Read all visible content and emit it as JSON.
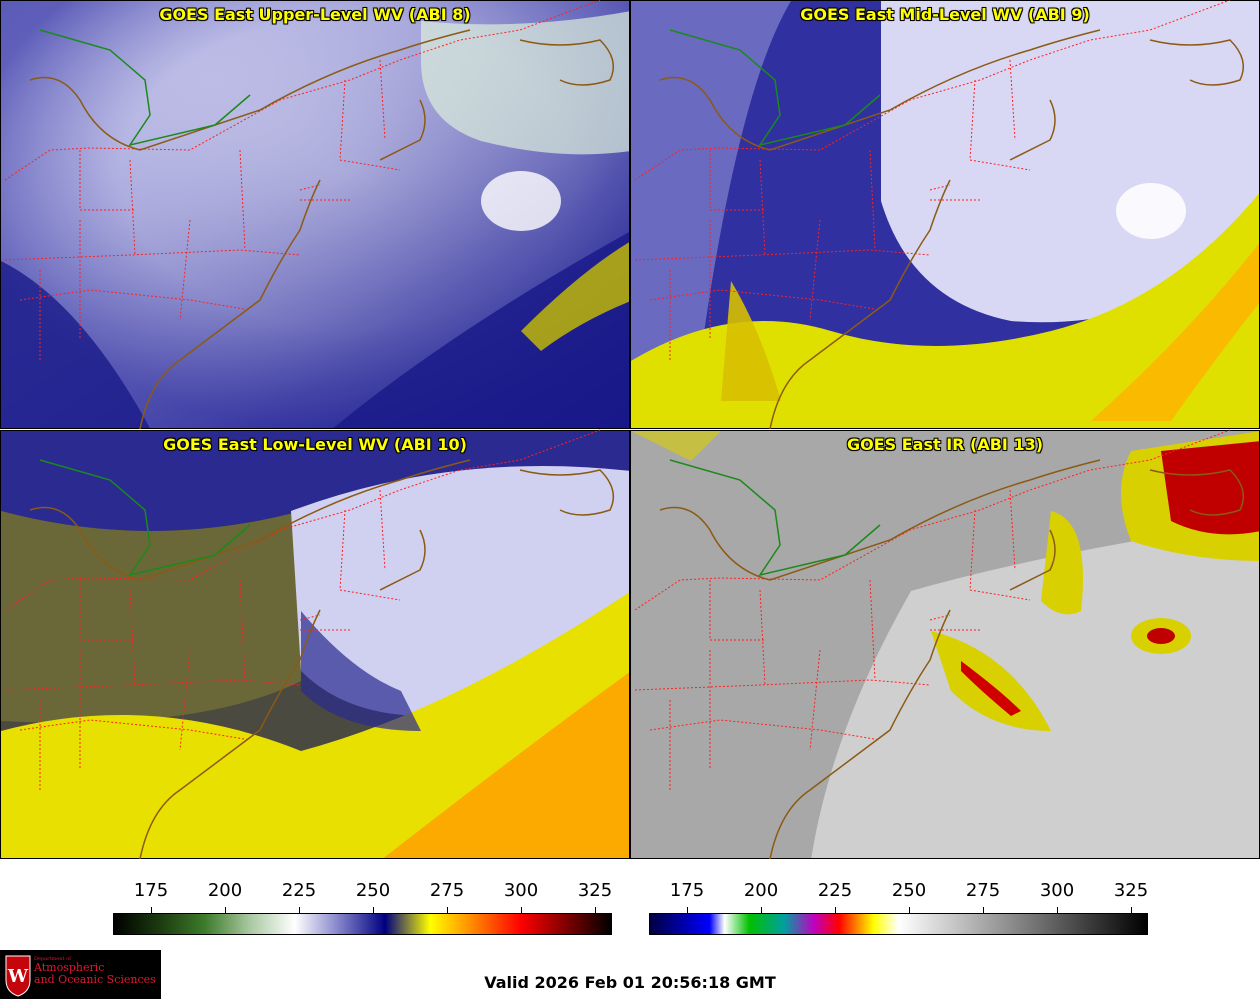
{
  "panels": [
    {
      "title": "GOES East Upper-Level WV (ABI 8)",
      "style": "upper"
    },
    {
      "title": "GOES East Mid-Level WV (ABI 9)",
      "style": "mid"
    },
    {
      "title": "GOES East Low-Level WV (ABI 10)",
      "style": "low"
    },
    {
      "title": "GOES East IR (ABI 13)",
      "style": "ir"
    }
  ],
  "colorbars": {
    "wv": {
      "ticks": [
        "175",
        "200",
        "225",
        "250",
        "275",
        "300",
        "325"
      ]
    },
    "ir": {
      "ticks": [
        "175",
        "200",
        "225",
        "250",
        "275",
        "300",
        "325"
      ]
    }
  },
  "colors": {
    "wv_stops": [
      "#000000",
      "#1c3a10",
      "#3c7a2a",
      "#a8c8a0",
      "#ffffff",
      "#8080c8",
      "#000080",
      "#ffff00",
      "#ff8000",
      "#ff0000",
      "#800000",
      "#000000"
    ],
    "ir_stops": [
      "#000040",
      "#0000ff",
      "#ffffff",
      "#00c000",
      "#00a0a0",
      "#c000c0",
      "#ff0000",
      "#ffff00",
      "#ffffff",
      "#808080",
      "#000000"
    ],
    "state_border": "#ff2020",
    "coastline": "#8b5a14",
    "lake_boundary": "#1a8a1a"
  },
  "logo": {
    "dept_line": "Department of",
    "line1": "Atmospheric",
    "line2": "and Oceanic Sciences"
  },
  "valid_time": "Valid 2026 Feb 01 20:56:18 GMT"
}
